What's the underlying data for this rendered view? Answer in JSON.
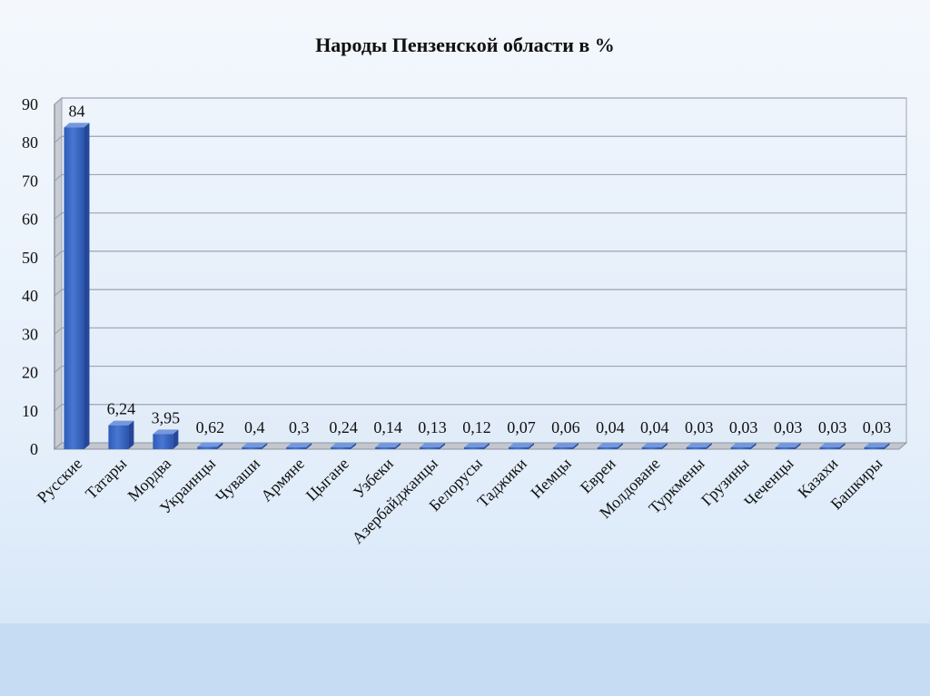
{
  "chart_data": {
    "type": "bar",
    "title": "Народы Пензенской области в %",
    "categories": [
      "Русские",
      "Татары",
      "Мордва",
      "Украинцы",
      "Чуваши",
      "Армяне",
      "Цыгане",
      "Узбеки",
      "Азербайджанцы",
      "Белорусы",
      "Таджики",
      "Немцы",
      "Евреи",
      "Молдоване",
      "Туркмены",
      "Грузины",
      "Чеченцы",
      "Казахи",
      "Башкиры"
    ],
    "values": [
      84,
      6.24,
      3.95,
      0.62,
      0.4,
      0.3,
      0.24,
      0.14,
      0.13,
      0.12,
      0.07,
      0.06,
      0.04,
      0.04,
      0.03,
      0.03,
      0.03,
      0.03,
      0.03
    ],
    "value_labels": [
      "84",
      "6,24",
      "3,95",
      "0,62",
      "0,4",
      "0,3",
      "0,24",
      "0,14",
      "0,13",
      "0,12",
      "0,07",
      "0,06",
      "0,04",
      "0,04",
      "0,03",
      "0,03",
      "0,03",
      "0,03",
      "0,03"
    ],
    "yticks": [
      "0",
      "10",
      "20",
      "30",
      "40",
      "50",
      "60",
      "70",
      "80",
      "90"
    ],
    "ylim": [
      0,
      90
    ],
    "xlabel": "",
    "ylabel": "",
    "grid": true,
    "legend": "none",
    "colors": {
      "bar": "#3a68c4",
      "bar_top": "#7597dc",
      "bar_side": "#24479a",
      "grid": "#9aa5b3",
      "floor": "#8a94a2"
    }
  }
}
